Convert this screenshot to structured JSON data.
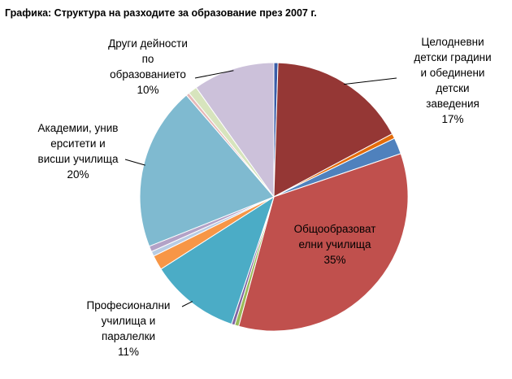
{
  "chart_data": {
    "type": "pie",
    "title": "Графика: Структура на разходите за образование през 2007 г.",
    "slices": [
      {
        "value": 0.5,
        "color": "#3A5DA8"
      },
      {
        "value": 17,
        "color": "#953735",
        "label": [
          "Целодневни",
          "детски градини",
          "и обединени",
          "детски",
          "заведения"
        ],
        "pct": "17%"
      },
      {
        "value": 0.6,
        "color": "#E46C0A"
      },
      {
        "value": 2,
        "color": "#4F81BD"
      },
      {
        "value": 35,
        "color": "#C0504D",
        "label": [
          "Общообразоват",
          "елни училища"
        ],
        "pct": "35%"
      },
      {
        "value": 0.5,
        "color": "#9BBB59"
      },
      {
        "value": 0.4,
        "color": "#8064A2"
      },
      {
        "value": 11,
        "color": "#4BACC6",
        "label": [
          "Професионални",
          "училища и",
          "паралелки"
        ],
        "pct": "11%"
      },
      {
        "value": 1.8,
        "color": "#F79646"
      },
      {
        "value": 0.6,
        "color": "#B8CCE4"
      },
      {
        "value": 0.7,
        "color": "#B3A2C7"
      },
      {
        "value": 20,
        "color": "#7FBAD0",
        "label": [
          "Академии, унив",
          "ерситети и",
          "висши училища"
        ],
        "pct": "20%"
      },
      {
        "value": 0.4,
        "color": "#E6B9B8"
      },
      {
        "value": 1.1,
        "color": "#D7E4BD"
      },
      {
        "value": 10,
        "color": "#CCC1DA",
        "label": [
          "Други дейности",
          "по",
          "образованието"
        ],
        "pct": "10%"
      }
    ]
  }
}
